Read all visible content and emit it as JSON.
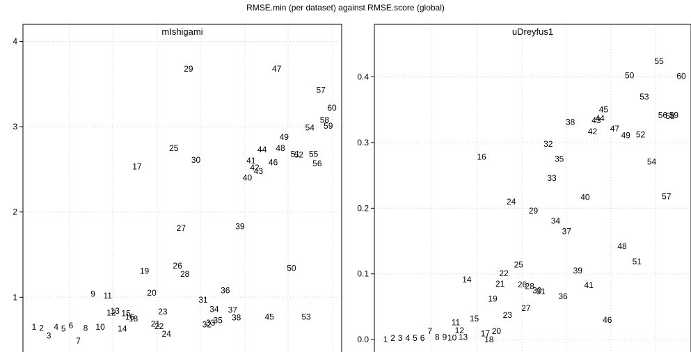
{
  "title": "RMSE.min (per dataset) against RMSE.score (global)",
  "chart_data": [
    {
      "type": "scatter",
      "title": "mIshigami",
      "grid": true,
      "ylim": [
        0.35,
        4.2
      ],
      "yticks": [
        1,
        2,
        3,
        4
      ],
      "points": [
        {
          "label": "1",
          "x": 1,
          "y": 0.65
        },
        {
          "label": "2",
          "x": 2,
          "y": 0.64
        },
        {
          "label": "3",
          "x": 3,
          "y": 0.55
        },
        {
          "label": "4",
          "x": 4,
          "y": 0.65
        },
        {
          "label": "5",
          "x": 5,
          "y": 0.63
        },
        {
          "label": "6",
          "x": 6,
          "y": 0.67
        },
        {
          "label": "7",
          "x": 7,
          "y": 0.49
        },
        {
          "label": "8",
          "x": 8,
          "y": 0.64
        },
        {
          "label": "9",
          "x": 9,
          "y": 1.04
        },
        {
          "label": "10",
          "x": 10,
          "y": 0.65
        },
        {
          "label": "11",
          "x": 11,
          "y": 1.02
        },
        {
          "label": "12",
          "x": 11.5,
          "y": 0.82
        },
        {
          "label": "13",
          "x": 12,
          "y": 0.84
        },
        {
          "label": "14",
          "x": 13,
          "y": 0.63
        },
        {
          "label": "15",
          "x": 13.5,
          "y": 0.81
        },
        {
          "label": "16",
          "x": 14,
          "y": 0.77
        },
        {
          "label": "17",
          "x": 15,
          "y": 2.53
        },
        {
          "label": "18",
          "x": 14.5,
          "y": 0.75
        },
        {
          "label": "19",
          "x": 16,
          "y": 1.31
        },
        {
          "label": "20",
          "x": 17,
          "y": 1.05
        },
        {
          "label": "21",
          "x": 17.5,
          "y": 0.69
        },
        {
          "label": "22",
          "x": 18,
          "y": 0.66
        },
        {
          "label": "23",
          "x": 18.5,
          "y": 0.83
        },
        {
          "label": "24",
          "x": 19,
          "y": 0.57
        },
        {
          "label": "25",
          "x": 20,
          "y": 2.75
        },
        {
          "label": "26",
          "x": 20.5,
          "y": 1.37
        },
        {
          "label": "27",
          "x": 21,
          "y": 1.81
        },
        {
          "label": "28",
          "x": 21.5,
          "y": 1.27
        },
        {
          "label": "29",
          "x": 22,
          "y": 3.68
        },
        {
          "label": "30",
          "x": 23,
          "y": 2.61
        },
        {
          "label": "31",
          "x": 24,
          "y": 0.97
        },
        {
          "label": "32",
          "x": 24.5,
          "y": 0.68
        },
        {
          "label": "33",
          "x": 25,
          "y": 0.7
        },
        {
          "label": "34",
          "x": 25.5,
          "y": 0.86
        },
        {
          "label": "35",
          "x": 26,
          "y": 0.73
        },
        {
          "label": "36",
          "x": 27,
          "y": 1.08
        },
        {
          "label": "37",
          "x": 28,
          "y": 0.85
        },
        {
          "label": "38",
          "x": 28.5,
          "y": 0.76
        },
        {
          "label": "39",
          "x": 29,
          "y": 1.83
        },
        {
          "label": "40",
          "x": 30,
          "y": 2.4
        },
        {
          "label": "41",
          "x": 30.5,
          "y": 2.6
        },
        {
          "label": "42",
          "x": 31,
          "y": 2.52
        },
        {
          "label": "43",
          "x": 31.5,
          "y": 2.48
        },
        {
          "label": "44",
          "x": 32,
          "y": 2.73
        },
        {
          "label": "45",
          "x": 33,
          "y": 0.77
        },
        {
          "label": "46",
          "x": 33.5,
          "y": 2.58
        },
        {
          "label": "47",
          "x": 34,
          "y": 3.68
        },
        {
          "label": "48",
          "x": 34.5,
          "y": 2.75
        },
        {
          "label": "49",
          "x": 35,
          "y": 2.88
        },
        {
          "label": "50",
          "x": 36,
          "y": 1.34
        },
        {
          "label": "51",
          "x": 36.5,
          "y": 2.68
        },
        {
          "label": "52",
          "x": 37,
          "y": 2.67
        },
        {
          "label": "53",
          "x": 38,
          "y": 0.77
        },
        {
          "label": "54",
          "x": 38.5,
          "y": 2.99
        },
        {
          "label": "55",
          "x": 39,
          "y": 2.68
        },
        {
          "label": "56",
          "x": 39.5,
          "y": 2.57
        },
        {
          "label": "57",
          "x": 40,
          "y": 3.43
        },
        {
          "label": "58",
          "x": 40.5,
          "y": 3.08
        },
        {
          "label": "59",
          "x": 41,
          "y": 3.01
        },
        {
          "label": "60",
          "x": 41.5,
          "y": 3.22
        }
      ]
    },
    {
      "type": "scatter",
      "title": "uDreyfus1",
      "grid": true,
      "ylim": [
        -0.02,
        0.48
      ],
      "yticks": [
        0.0,
        0.1,
        0.2,
        0.3,
        0.4
      ],
      "points": [
        {
          "label": "1",
          "x": 1,
          "y": 0.0
        },
        {
          "label": "2",
          "x": 2,
          "y": 0.002
        },
        {
          "label": "3",
          "x": 3,
          "y": 0.002
        },
        {
          "label": "4",
          "x": 4,
          "y": 0.002
        },
        {
          "label": "5",
          "x": 5,
          "y": 0.002
        },
        {
          "label": "6",
          "x": 6,
          "y": 0.002
        },
        {
          "label": "7",
          "x": 7,
          "y": 0.013
        },
        {
          "label": "8",
          "x": 8,
          "y": 0.004
        },
        {
          "label": "9",
          "x": 9,
          "y": 0.004
        },
        {
          "label": "10",
          "x": 10,
          "y": 0.003
        },
        {
          "label": "11",
          "x": 10.5,
          "y": 0.026
        },
        {
          "label": "12",
          "x": 11,
          "y": 0.014
        },
        {
          "label": "13",
          "x": 11.5,
          "y": 0.004
        },
        {
          "label": "14",
          "x": 12,
          "y": 0.091
        },
        {
          "label": "15",
          "x": 13,
          "y": 0.032
        },
        {
          "label": "16",
          "x": 14,
          "y": 0.278
        },
        {
          "label": "17",
          "x": 14.5,
          "y": 0.009
        },
        {
          "label": "18",
          "x": 15,
          "y": 0.0
        },
        {
          "label": "19",
          "x": 15.5,
          "y": 0.062
        },
        {
          "label": "20",
          "x": 16,
          "y": 0.013
        },
        {
          "label": "21",
          "x": 16.5,
          "y": 0.085
        },
        {
          "label": "22",
          "x": 17,
          "y": 0.101
        },
        {
          "label": "23",
          "x": 17.5,
          "y": 0.037
        },
        {
          "label": "24",
          "x": 18,
          "y": 0.21
        },
        {
          "label": "25",
          "x": 19,
          "y": 0.114
        },
        {
          "label": "26",
          "x": 19.5,
          "y": 0.084
        },
        {
          "label": "27",
          "x": 20,
          "y": 0.048
        },
        {
          "label": "28",
          "x": 20.5,
          "y": 0.081
        },
        {
          "label": "29",
          "x": 21,
          "y": 0.196
        },
        {
          "label": "30",
          "x": 21.5,
          "y": 0.075
        },
        {
          "label": "31",
          "x": 22,
          "y": 0.073
        },
        {
          "label": "32",
          "x": 23,
          "y": 0.298
        },
        {
          "label": "33",
          "x": 23.5,
          "y": 0.246
        },
        {
          "label": "34",
          "x": 24,
          "y": 0.181
        },
        {
          "label": "35",
          "x": 24.5,
          "y": 0.275
        },
        {
          "label": "36",
          "x": 25,
          "y": 0.066
        },
        {
          "label": "37",
          "x": 25.5,
          "y": 0.165
        },
        {
          "label": "38",
          "x": 26,
          "y": 0.331
        },
        {
          "label": "39",
          "x": 27,
          "y": 0.105
        },
        {
          "label": "40",
          "x": 28,
          "y": 0.217
        },
        {
          "label": "41",
          "x": 28.5,
          "y": 0.083
        },
        {
          "label": "42",
          "x": 29,
          "y": 0.317
        },
        {
          "label": "43",
          "x": 29.5,
          "y": 0.334
        },
        {
          "label": "44",
          "x": 30,
          "y": 0.337
        },
        {
          "label": "45",
          "x": 30.5,
          "y": 0.35
        },
        {
          "label": "46",
          "x": 31,
          "y": 0.03
        },
        {
          "label": "47",
          "x": 32,
          "y": 0.321
        },
        {
          "label": "48",
          "x": 33,
          "y": 0.142
        },
        {
          "label": "49",
          "x": 33.5,
          "y": 0.311
        },
        {
          "label": "50",
          "x": 34,
          "y": 0.402
        },
        {
          "label": "51",
          "x": 35,
          "y": 0.119
        },
        {
          "label": "52",
          "x": 35.5,
          "y": 0.312
        },
        {
          "label": "53",
          "x": 36,
          "y": 0.37
        },
        {
          "label": "54",
          "x": 37,
          "y": 0.271
        },
        {
          "label": "55",
          "x": 38,
          "y": 0.424
        },
        {
          "label": "56",
          "x": 38.5,
          "y": 0.342
        },
        {
          "label": "57",
          "x": 39,
          "y": 0.218
        },
        {
          "label": "58",
          "x": 39.5,
          "y": 0.34
        },
        {
          "label": "59",
          "x": 40,
          "y": 0.342
        },
        {
          "label": "60",
          "x": 41,
          "y": 0.401
        }
      ]
    }
  ]
}
